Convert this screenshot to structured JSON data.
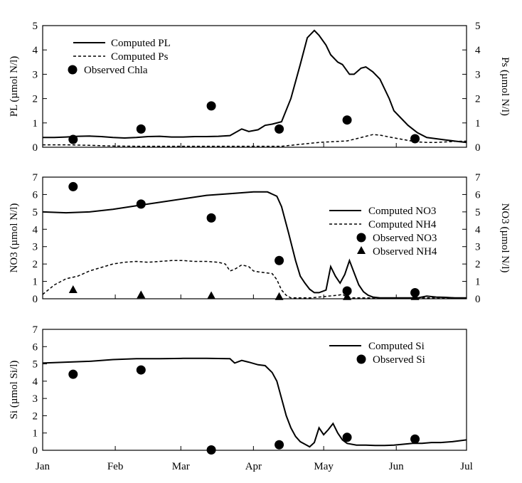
{
  "chart_data": [
    {
      "type": "line",
      "xlim": [
        0,
        181
      ],
      "ylim": [
        0,
        5
      ],
      "yticks": [
        "0",
        "1",
        "2",
        "3",
        "4",
        "5"
      ],
      "y2ticks": [
        "0",
        "1",
        "2",
        "3",
        "4",
        "5"
      ],
      "ylabel": "PL (µmol N/l)",
      "y2label": "Ps (µmol N/l)",
      "legend": [
        {
          "label": "Computed PL",
          "style": "solid"
        },
        {
          "label": "Computed Ps",
          "style": "dashed"
        },
        {
          "label": "Observed Chla",
          "style": "circle"
        }
      ],
      "series": [
        {
          "name": "Computed PL",
          "style": "solid",
          "x": [
            0,
            5,
            10,
            15,
            20,
            25,
            30,
            35,
            40,
            45,
            50,
            55,
            60,
            65,
            70,
            75,
            80,
            85,
            88,
            92,
            95,
            98,
            102,
            106,
            110,
            113,
            116,
            118,
            121,
            123,
            126,
            128,
            131,
            133,
            136,
            138,
            141,
            144,
            148,
            150,
            153,
            156,
            160,
            164,
            168,
            172,
            176,
            181
          ],
          "y": [
            0.4,
            0.4,
            0.42,
            0.45,
            0.46,
            0.44,
            0.4,
            0.38,
            0.4,
            0.44,
            0.45,
            0.42,
            0.42,
            0.44,
            0.44,
            0.45,
            0.48,
            0.75,
            0.65,
            0.72,
            0.9,
            0.95,
            1.05,
            2.0,
            3.4,
            4.5,
            4.8,
            4.6,
            4.2,
            3.8,
            3.5,
            3.4,
            3.0,
            3.0,
            3.25,
            3.3,
            3.1,
            2.8,
            2.0,
            1.5,
            1.2,
            0.9,
            0.6,
            0.4,
            0.35,
            0.3,
            0.25,
            0.2
          ]
        },
        {
          "name": "Computed Ps",
          "style": "dashed",
          "x": [
            0,
            10,
            20,
            30,
            40,
            50,
            60,
            70,
            80,
            90,
            98,
            102,
            106,
            110,
            114,
            118,
            122,
            126,
            130,
            134,
            138,
            141,
            144,
            148,
            152,
            156,
            160,
            164,
            168,
            172,
            176,
            181
          ],
          "y": [
            0.1,
            0.1,
            0.08,
            0.05,
            0.04,
            0.04,
            0.04,
            0.04,
            0.04,
            0.04,
            0.04,
            0.04,
            0.08,
            0.12,
            0.16,
            0.2,
            0.22,
            0.24,
            0.26,
            0.35,
            0.45,
            0.52,
            0.5,
            0.42,
            0.35,
            0.28,
            0.22,
            0.2,
            0.2,
            0.22,
            0.24,
            0.25
          ]
        },
        {
          "name": "Observed Chla",
          "style": "circle",
          "x": [
            13,
            42,
            72,
            101,
            130,
            159
          ],
          "y": [
            0.32,
            0.75,
            1.7,
            0.75,
            1.12,
            0.35
          ]
        }
      ]
    },
    {
      "type": "line",
      "xlim": [
        0,
        181
      ],
      "ylim": [
        0,
        7
      ],
      "yticks": [
        "0",
        "1",
        "2",
        "3",
        "4",
        "5",
        "6",
        "7"
      ],
      "y2ticks": [
        "0",
        "1",
        "2",
        "3",
        "4",
        "5",
        "6",
        "7"
      ],
      "ylabel": "NO3 (µmol N/l)",
      "y2label": "NO3 (µmol N/l)",
      "legend": [
        {
          "label": "Computed NO3",
          "style": "solid"
        },
        {
          "label": "Computed NH4",
          "style": "dashed"
        },
        {
          "label": "Observed NO3",
          "style": "circle"
        },
        {
          "label": "Observed NH4",
          "style": "triangle"
        }
      ],
      "series": [
        {
          "name": "Computed NO3",
          "style": "solid",
          "x": [
            0,
            10,
            20,
            30,
            40,
            50,
            60,
            70,
            80,
            90,
            96,
            100,
            102,
            105,
            108,
            110,
            112,
            114,
            116,
            118,
            121,
            123,
            125,
            127,
            129,
            131,
            133,
            135,
            137,
            139,
            141,
            144,
            148,
            152,
            156,
            160,
            164,
            168,
            172,
            176,
            181
          ],
          "y": [
            5.0,
            4.95,
            5.0,
            5.15,
            5.35,
            5.55,
            5.75,
            5.95,
            6.05,
            6.15,
            6.15,
            5.9,
            5.3,
            3.8,
            2.2,
            1.3,
            0.9,
            0.55,
            0.35,
            0.35,
            0.5,
            1.85,
            1.3,
            0.9,
            1.4,
            2.2,
            1.5,
            0.8,
            0.4,
            0.2,
            0.1,
            0.05,
            0.05,
            0.05,
            0.05,
            0.05,
            0.15,
            0.1,
            0.08,
            0.05,
            0.05
          ]
        },
        {
          "name": "Computed NH4",
          "style": "dashed",
          "x": [
            0,
            5,
            10,
            15,
            20,
            25,
            30,
            35,
            40,
            45,
            50,
            55,
            60,
            65,
            70,
            75,
            78,
            80,
            82,
            85,
            88,
            90,
            92,
            95,
            98,
            100,
            102,
            104,
            106,
            110,
            114,
            118,
            122,
            126,
            128,
            130,
            132,
            136,
            140,
            145,
            150,
            160,
            170,
            181
          ],
          "y": [
            0.25,
            0.8,
            1.15,
            1.3,
            1.6,
            1.8,
            2.0,
            2.1,
            2.15,
            2.1,
            2.15,
            2.2,
            2.2,
            2.15,
            2.15,
            2.1,
            2.0,
            1.6,
            1.7,
            1.95,
            1.85,
            1.6,
            1.55,
            1.5,
            1.45,
            1.1,
            0.5,
            0.2,
            0.05,
            0.05,
            0.05,
            0.1,
            0.15,
            0.2,
            0.25,
            0.1,
            0.05,
            0.05,
            0.05,
            0.05,
            0.05,
            0.05,
            0.05,
            0.05
          ]
        },
        {
          "name": "Observed NO3",
          "style": "circle",
          "x": [
            13,
            42,
            72,
            101,
            130,
            159
          ],
          "y": [
            6.45,
            5.45,
            4.65,
            2.2,
            0.45,
            0.35
          ]
        },
        {
          "name": "Observed NH4",
          "style": "triangle",
          "x": [
            13,
            42,
            72,
            101,
            130,
            159
          ],
          "y": [
            0.45,
            0.15,
            0.1,
            0.05,
            0.05,
            0.05
          ]
        }
      ]
    },
    {
      "type": "line",
      "xlim": [
        0,
        181
      ],
      "ylim": [
        0,
        7
      ],
      "yticks": [
        "0",
        "1",
        "2",
        "3",
        "4",
        "5",
        "6",
        "7"
      ],
      "xticks": [
        "Jan",
        "Feb",
        "Mar",
        "Apr",
        "May",
        "Jun",
        "Jul"
      ],
      "xtick_positions": [
        0,
        31,
        59,
        90,
        120,
        151,
        181
      ],
      "ylabel": "Si (µmol Si/l)",
      "legend": [
        {
          "label": "Computed Si",
          "style": "solid"
        },
        {
          "label": "Observed Si",
          "style": "circle"
        }
      ],
      "series": [
        {
          "name": "Computed Si",
          "style": "solid",
          "x": [
            0,
            10,
            20,
            30,
            40,
            50,
            60,
            70,
            80,
            82,
            85,
            88,
            92,
            95,
            98,
            100,
            102,
            104,
            106,
            108,
            110,
            112,
            114,
            116,
            118,
            120,
            122,
            124,
            126,
            128,
            130,
            134,
            138,
            142,
            146,
            150,
            154,
            158,
            162,
            166,
            170,
            175,
            181
          ],
          "y": [
            5.05,
            5.1,
            5.15,
            5.25,
            5.3,
            5.3,
            5.32,
            5.32,
            5.3,
            5.05,
            5.2,
            5.1,
            4.95,
            4.9,
            4.5,
            4.0,
            3.0,
            2.0,
            1.3,
            0.8,
            0.5,
            0.35,
            0.2,
            0.45,
            1.3,
            0.9,
            1.2,
            1.55,
            1.0,
            0.6,
            0.4,
            0.3,
            0.3,
            0.28,
            0.28,
            0.3,
            0.35,
            0.4,
            0.4,
            0.45,
            0.45,
            0.5,
            0.6
          ]
        },
        {
          "name": "Observed Si",
          "style": "circle",
          "x": [
            13,
            42,
            72,
            101,
            130,
            159
          ],
          "y": [
            4.4,
            4.65,
            0.02,
            0.32,
            0.75,
            0.65
          ]
        }
      ]
    }
  ]
}
